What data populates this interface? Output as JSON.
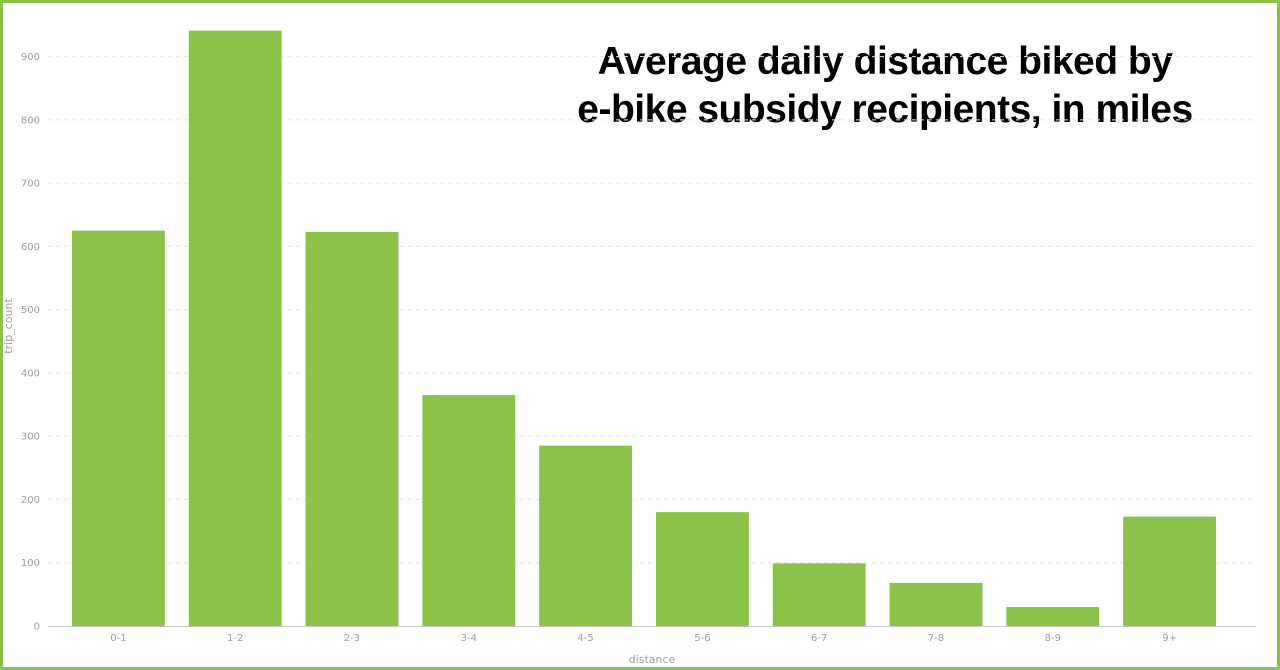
{
  "chart_data": {
    "type": "bar",
    "title_lines": [
      "Average daily distance biked by",
      "e-bike subsidy recipients, in miles"
    ],
    "xlabel": "distance",
    "ylabel": "trip_count",
    "categories": [
      "0-1",
      "1-2",
      "2-3",
      "3-4",
      "4-5",
      "5-6",
      "6-7",
      "7-8",
      "8-9",
      "9+"
    ],
    "values": [
      625,
      941,
      623,
      365,
      285,
      180,
      99,
      68,
      30,
      173
    ],
    "ylim": [
      0,
      950
    ],
    "yticks": [
      "0",
      "100",
      "200",
      "300",
      "400",
      "500",
      "600",
      "700",
      "800",
      "900"
    ],
    "grid": true,
    "bar_color": "#8bc34a",
    "frame_color": "#8bc34a"
  }
}
